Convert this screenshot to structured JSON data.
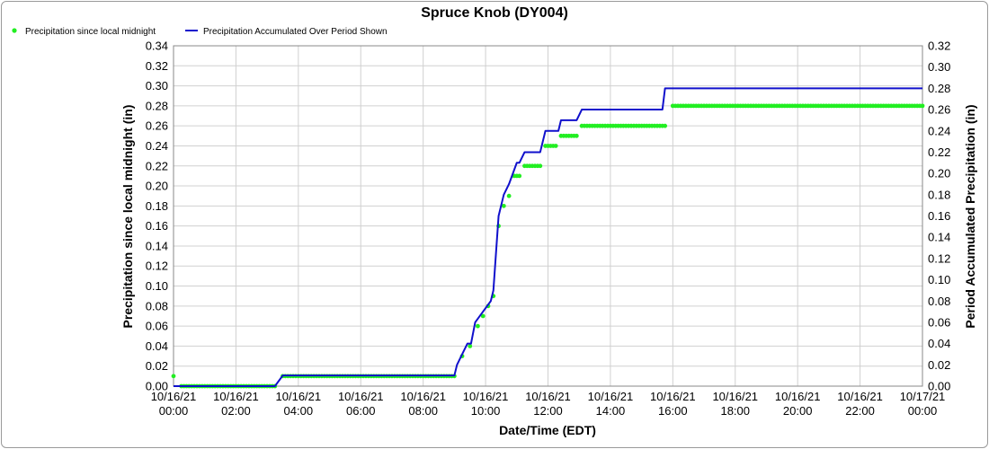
{
  "chart_data": {
    "type": "line",
    "title": "Spruce Knob (DY004)",
    "xlabel": "Date/Time (EDT)",
    "ylabel_left": "Precipitation since local midnight (in)",
    "ylabel_right": "Period Accumulated Precipitation (in)",
    "x_tick_labels": [
      {
        "date": "10/16/21",
        "time": "00:00"
      },
      {
        "date": "10/16/21",
        "time": "02:00"
      },
      {
        "date": "10/16/21",
        "time": "04:00"
      },
      {
        "date": "10/16/21",
        "time": "06:00"
      },
      {
        "date": "10/16/21",
        "time": "08:00"
      },
      {
        "date": "10/16/21",
        "time": "10:00"
      },
      {
        "date": "10/16/21",
        "time": "12:00"
      },
      {
        "date": "10/16/21",
        "time": "14:00"
      },
      {
        "date": "10/16/21",
        "time": "16:00"
      },
      {
        "date": "10/16/21",
        "time": "18:00"
      },
      {
        "date": "10/16/21",
        "time": "20:00"
      },
      {
        "date": "10/16/21",
        "time": "22:00"
      },
      {
        "date": "10/17/21",
        "time": "00:00"
      }
    ],
    "xlim": [
      "2021-10-16 00:00",
      "2021-10-17 00:00"
    ],
    "ylim_left": [
      0,
      0.34
    ],
    "yticks_left": [
      "0.00",
      "0.02",
      "0.04",
      "0.06",
      "0.08",
      "0.10",
      "0.12",
      "0.14",
      "0.16",
      "0.18",
      "0.20",
      "0.22",
      "0.24",
      "0.26",
      "0.28",
      "0.30",
      "0.32",
      "0.34"
    ],
    "ylim_right": [
      0,
      0.32
    ],
    "yticks_right": [
      "0.00",
      "0.02",
      "0.04",
      "0.06",
      "0.08",
      "0.10",
      "0.12",
      "0.14",
      "0.16",
      "0.18",
      "0.20",
      "0.22",
      "0.24",
      "0.26",
      "0.28",
      "0.30",
      "0.32"
    ],
    "grid": true,
    "legend_position": "top-left",
    "series": [
      {
        "name": "Precipitation since local midnight",
        "type": "scatter",
        "axis": "left",
        "color": "#22ee22",
        "segments": [
          {
            "start": "2021-10-16 00:00",
            "end": "2021-10-16 00:00",
            "y": 0.01
          },
          {
            "start": "2021-10-16 00:15",
            "end": "2021-10-16 03:15",
            "y": 0.0
          },
          {
            "start": "2021-10-16 03:30",
            "end": "2021-10-16 09:00",
            "y": 0.01
          },
          {
            "start": "2021-10-16 09:15",
            "end": "2021-10-16 09:15",
            "y": 0.03
          },
          {
            "start": "2021-10-16 09:30",
            "end": "2021-10-16 09:30",
            "y": 0.04
          },
          {
            "start": "2021-10-16 09:45",
            "end": "2021-10-16 09:45",
            "y": 0.06
          },
          {
            "start": "2021-10-16 09:55",
            "end": "2021-10-16 09:55",
            "y": 0.07
          },
          {
            "start": "2021-10-16 10:05",
            "end": "2021-10-16 10:05",
            "y": 0.08
          },
          {
            "start": "2021-10-16 10:15",
            "end": "2021-10-16 10:15",
            "y": 0.09
          },
          {
            "start": "2021-10-16 10:25",
            "end": "2021-10-16 10:25",
            "y": 0.16
          },
          {
            "start": "2021-10-16 10:35",
            "end": "2021-10-16 10:35",
            "y": 0.18
          },
          {
            "start": "2021-10-16 10:45",
            "end": "2021-10-16 10:45",
            "y": 0.19
          },
          {
            "start": "2021-10-16 10:55",
            "end": "2021-10-16 11:05",
            "y": 0.21
          },
          {
            "start": "2021-10-16 11:15",
            "end": "2021-10-16 11:45",
            "y": 0.22
          },
          {
            "start": "2021-10-16 11:55",
            "end": "2021-10-16 12:15",
            "y": 0.24
          },
          {
            "start": "2021-10-16 12:25",
            "end": "2021-10-16 12:55",
            "y": 0.25
          },
          {
            "start": "2021-10-16 13:05",
            "end": "2021-10-16 15:45",
            "y": 0.26
          },
          {
            "start": "2021-10-16 16:00",
            "end": "2021-10-17 00:00",
            "y": 0.28
          }
        ]
      },
      {
        "name": "Precipitation Accumulated Over Period Shown",
        "type": "line",
        "axis": "right",
        "color": "#1010cc",
        "points": [
          [
            "2021-10-16 00:00",
            0.0
          ],
          [
            "2021-10-16 03:15",
            0.0
          ],
          [
            "2021-10-16 03:30",
            0.01
          ],
          [
            "2021-10-16 09:00",
            0.01
          ],
          [
            "2021-10-16 09:05",
            0.02
          ],
          [
            "2021-10-16 09:15",
            0.03
          ],
          [
            "2021-10-16 09:25",
            0.04
          ],
          [
            "2021-10-16 09:32",
            0.04
          ],
          [
            "2021-10-16 09:40",
            0.06
          ],
          [
            "2021-10-16 09:55",
            0.07
          ],
          [
            "2021-10-16 10:10",
            0.08
          ],
          [
            "2021-10-16 10:15",
            0.09
          ],
          [
            "2021-10-16 10:25",
            0.16
          ],
          [
            "2021-10-16 10:35",
            0.18
          ],
          [
            "2021-10-16 10:45",
            0.19
          ],
          [
            "2021-10-16 11:00",
            0.21
          ],
          [
            "2021-10-16 11:05",
            0.21
          ],
          [
            "2021-10-16 11:15",
            0.22
          ],
          [
            "2021-10-16 11:45",
            0.22
          ],
          [
            "2021-10-16 11:55",
            0.24
          ],
          [
            "2021-10-16 12:20",
            0.24
          ],
          [
            "2021-10-16 12:25",
            0.25
          ],
          [
            "2021-10-16 12:55",
            0.25
          ],
          [
            "2021-10-16 13:05",
            0.26
          ],
          [
            "2021-10-16 15:40",
            0.26
          ],
          [
            "2021-10-16 15:45",
            0.28
          ],
          [
            "2021-10-17 00:00",
            0.28
          ]
        ]
      }
    ]
  }
}
